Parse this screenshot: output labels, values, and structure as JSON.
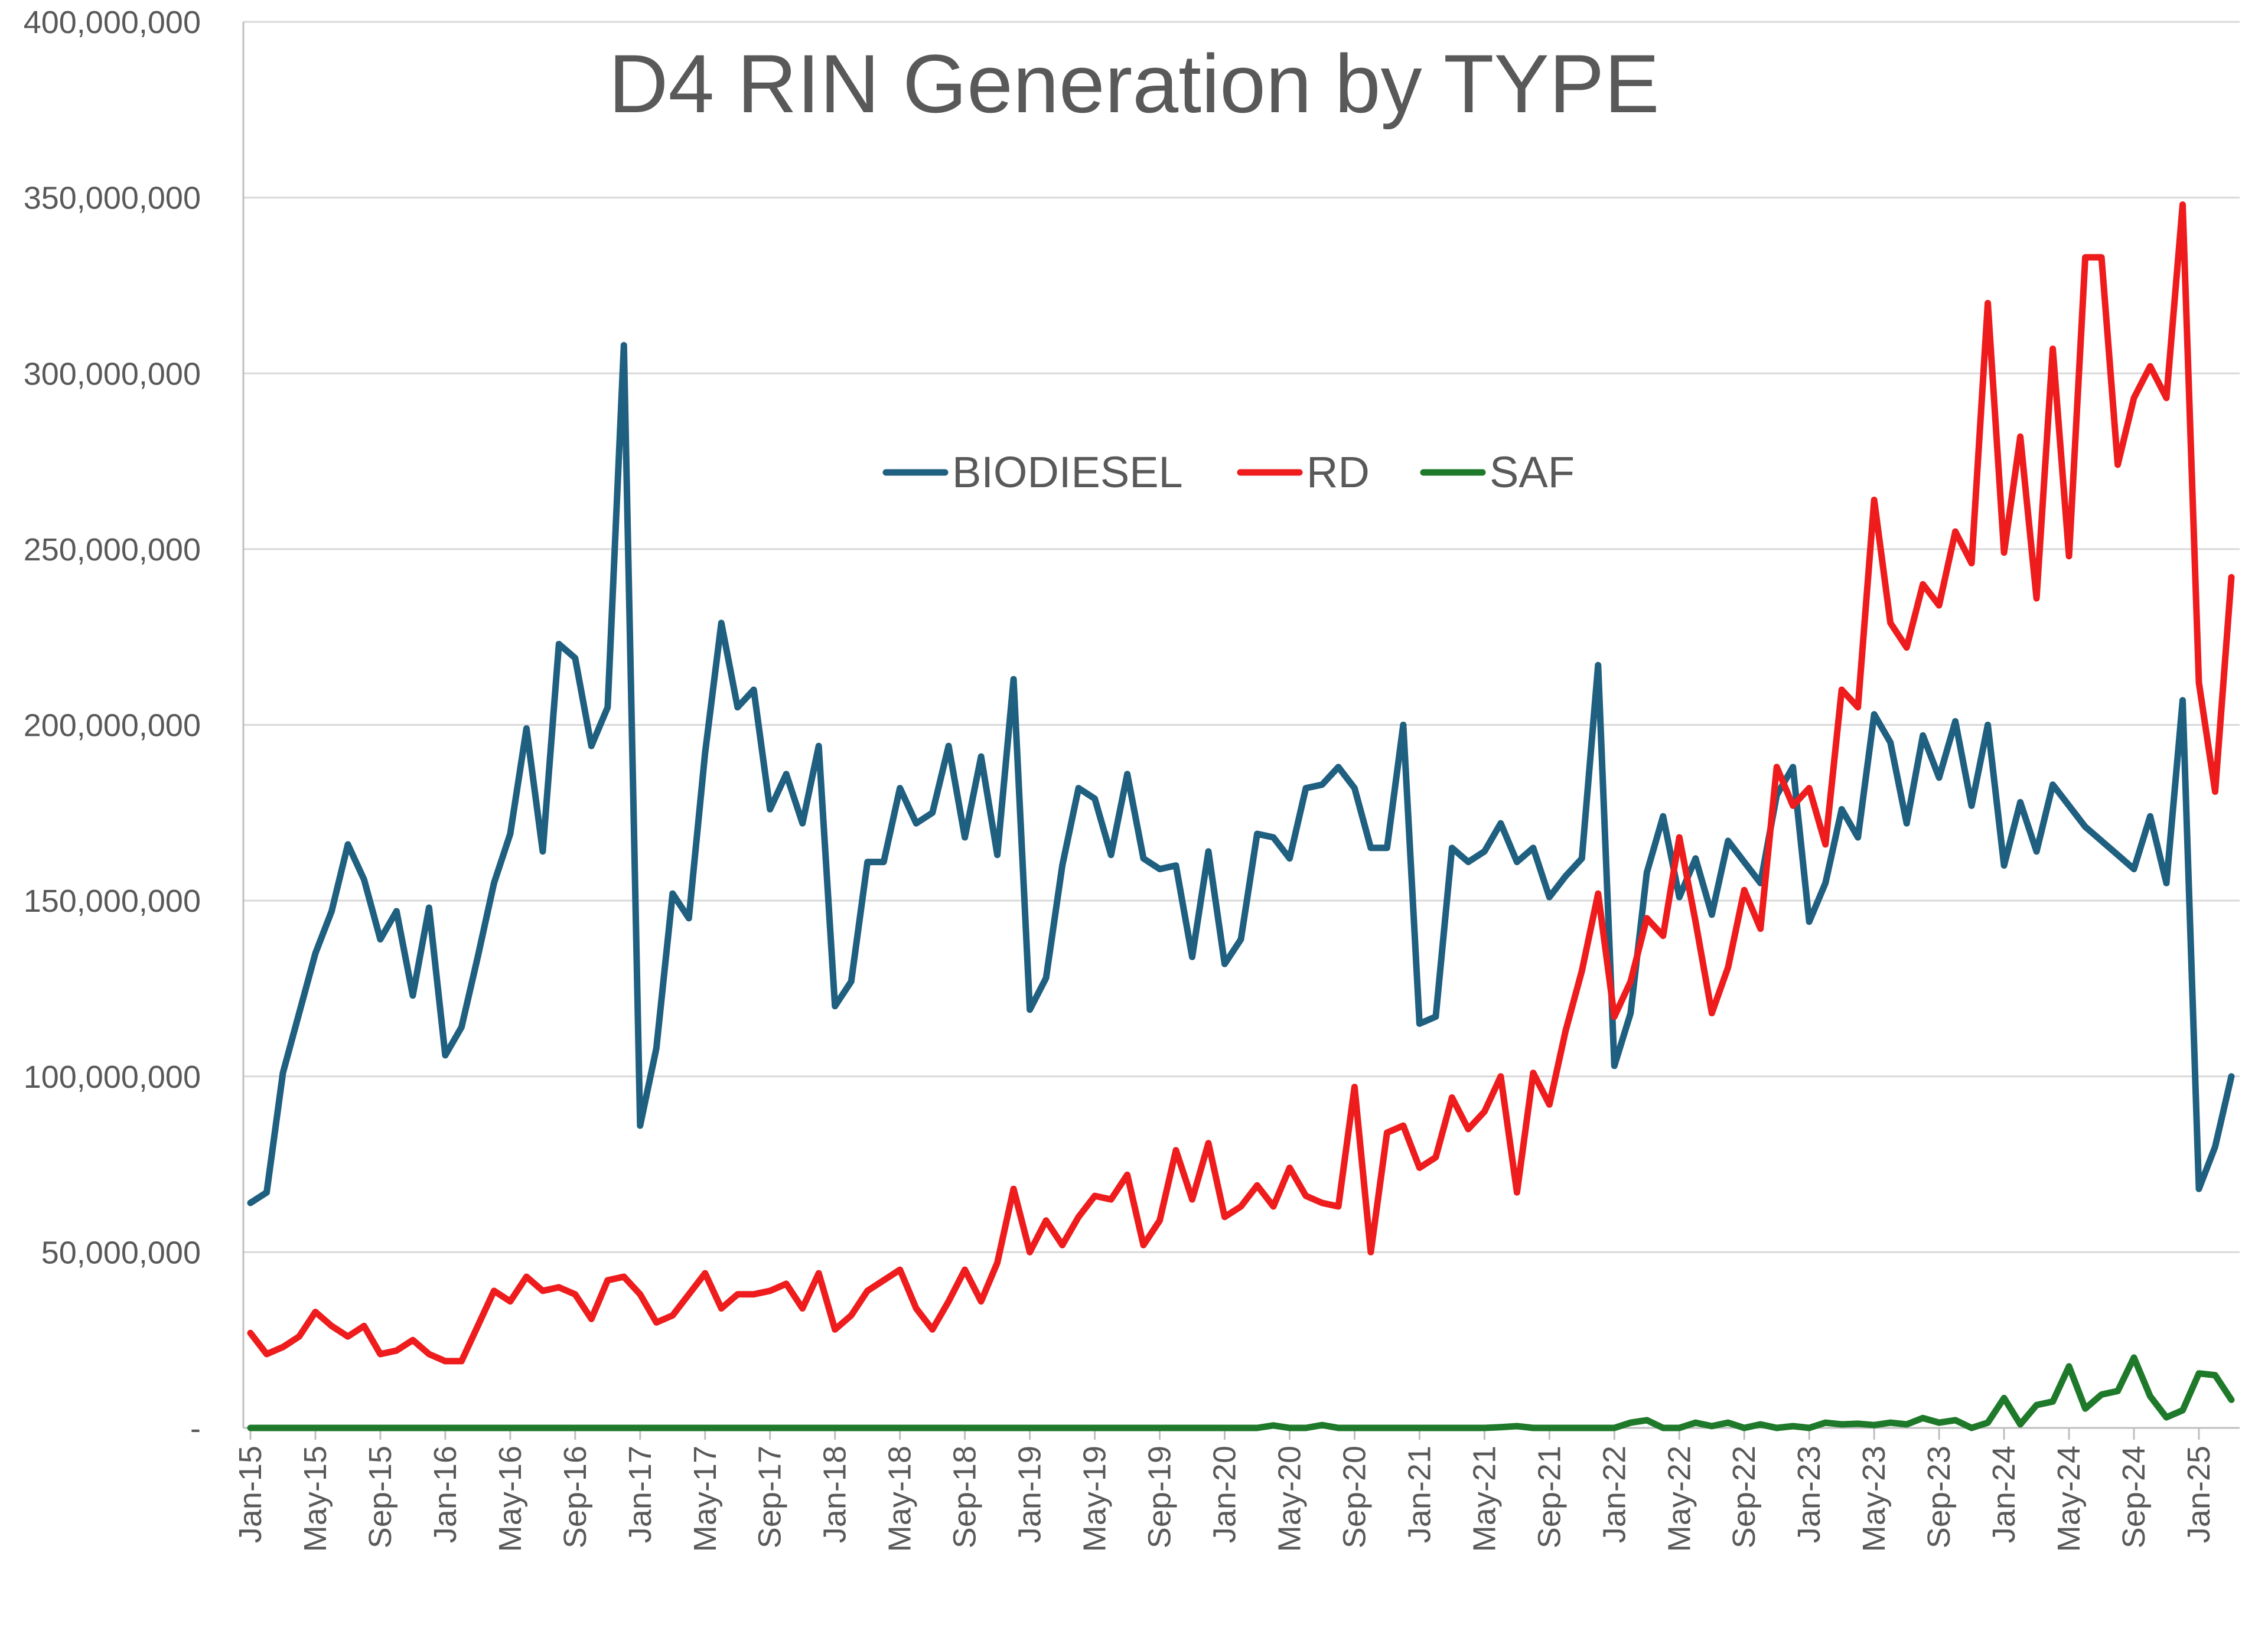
{
  "chart_data": {
    "type": "line",
    "title": "D4 RIN Generation by TYPE",
    "xlabel": "",
    "ylabel": "",
    "ylim": [
      0,
      400000000
    ],
    "y_ticks": [
      0,
      50000000,
      100000000,
      150000000,
      200000000,
      250000000,
      300000000,
      350000000,
      400000000
    ],
    "y_tick_labels": [
      "-",
      "50,000,000",
      "100,000,000",
      "150,000,000",
      "200,000,000",
      "250,000,000",
      "300,000,000",
      "350,000,000",
      "400,000,000"
    ],
    "x_tick_labels": [
      "Jan-15",
      "May-15",
      "Sep-15",
      "Jan-16",
      "May-16",
      "Sep-16",
      "Jan-17",
      "May-17",
      "Sep-17",
      "Jan-18",
      "May-18",
      "Sep-18",
      "Jan-19",
      "May-19",
      "Sep-19",
      "Jan-20",
      "May-20",
      "Sep-20",
      "Jan-21",
      "May-21",
      "Sep-21",
      "Jan-22",
      "May-22",
      "Sep-22",
      "Jan-23",
      "May-23",
      "Sep-23",
      "Jan-24",
      "May-24",
      "Sep-24",
      "Jan-25"
    ],
    "x_tick_every": 4,
    "grid": true,
    "legend_position": "center-top",
    "series": [
      {
        "name": "BIODIESEL",
        "color": "#1f5f7f",
        "values": [
          64000000,
          67000000,
          101000000,
          118000000,
          135000000,
          147000000,
          166000000,
          156000000,
          139000000,
          147000000,
          123000000,
          148000000,
          106000000,
          114000000,
          134000000,
          155000000,
          169000000,
          199000000,
          164000000,
          223000000,
          219000000,
          194000000,
          205000000,
          308000000,
          86000000,
          108000000,
          152000000,
          145000000,
          192000000,
          229000000,
          205000000,
          210000000,
          176000000,
          186000000,
          172000000,
          194000000,
          120000000,
          127000000,
          161000000,
          161000000,
          182000000,
          172000000,
          175000000,
          194000000,
          168000000,
          191000000,
          163000000,
          213000000,
          119000000,
          128000000,
          160000000,
          182000000,
          179000000,
          163000000,
          186000000,
          162000000,
          159000000,
          160000000,
          134000000,
          164000000,
          132000000,
          139000000,
          169000000,
          168000000,
          162000000,
          182000000,
          183000000,
          188000000,
          182000000,
          165000000,
          165000000,
          200000000,
          115000000,
          117000000,
          165000000,
          161000000,
          164000000,
          172000000,
          161000000,
          165000000,
          151000000,
          157000000,
          162000000,
          217000000,
          103000000,
          118000000,
          158000000,
          174000000,
          151000000,
          162000000,
          146000000,
          167000000,
          161000000,
          155000000,
          180000000,
          188000000,
          144000000,
          155000000,
          176000000,
          168000000,
          203000000,
          195000000,
          172000000,
          197000000,
          185000000,
          201000000,
          177000000,
          200000000,
          160000000,
          178000000,
          164000000,
          183000000,
          177000000,
          171000000,
          167000000,
          163000000,
          159000000,
          174000000,
          155000000,
          207000000,
          68000000,
          80000000,
          100000000
        ]
      },
      {
        "name": "RD",
        "color": "#ee1c1c",
        "values": [
          27000000,
          21000000,
          23000000,
          26000000,
          33000000,
          29000000,
          26000000,
          29000000,
          21000000,
          22000000,
          25000000,
          21000000,
          19000000,
          19000000,
          29000000,
          39000000,
          36000000,
          43000000,
          39000000,
          40000000,
          38000000,
          31000000,
          42000000,
          43000000,
          38000000,
          30000000,
          32000000,
          38000000,
          44000000,
          34000000,
          38000000,
          38000000,
          39000000,
          41000000,
          34000000,
          44000000,
          28000000,
          32000000,
          39000000,
          42000000,
          45000000,
          34000000,
          28000000,
          36000000,
          45000000,
          36000000,
          47000000,
          68000000,
          50000000,
          59000000,
          52000000,
          60000000,
          66000000,
          65000000,
          72000000,
          52000000,
          59000000,
          79000000,
          65000000,
          81000000,
          60000000,
          63000000,
          69000000,
          63000000,
          74000000,
          66000000,
          64000000,
          63000000,
          97000000,
          50000000,
          84000000,
          86000000,
          74000000,
          77000000,
          94000000,
          85000000,
          90000000,
          100000000,
          67000000,
          101000000,
          92000000,
          113000000,
          130000000,
          152000000,
          117000000,
          127000000,
          145000000,
          140000000,
          168000000,
          144000000,
          118000000,
          131000000,
          153000000,
          142000000,
          188000000,
          177000000,
          182000000,
          166000000,
          210000000,
          205000000,
          264000000,
          229000000,
          222000000,
          240000000,
          234000000,
          255000000,
          246000000,
          320000000,
          249000000,
          282000000,
          236000000,
          307000000,
          248000000,
          333000000,
          333000000,
          274000000,
          293000000,
          302000000,
          293000000,
          348000000,
          212000000,
          181000000,
          242000000
        ]
      },
      {
        "name": "SAF",
        "color": "#1e7a2a",
        "values": [
          0,
          0,
          0,
          0,
          0,
          0,
          0,
          0,
          0,
          0,
          0,
          0,
          0,
          0,
          0,
          0,
          0,
          0,
          0,
          0,
          0,
          0,
          0,
          0,
          0,
          0,
          0,
          0,
          0,
          0,
          0,
          0,
          0,
          0,
          0,
          0,
          0,
          0,
          0,
          0,
          0,
          0,
          0,
          0,
          0,
          0,
          0,
          0,
          0,
          0,
          0,
          0,
          0,
          0,
          0,
          0,
          0,
          0,
          0,
          0,
          0,
          0,
          0,
          700000,
          0,
          0,
          800000,
          0,
          0,
          0,
          0,
          0,
          0,
          0,
          0,
          0,
          0,
          200000,
          500000,
          0,
          0,
          0,
          0,
          0,
          0,
          1500000,
          2200000,
          0,
          0,
          1500000,
          500000,
          1500000,
          0,
          1000000,
          0,
          500000,
          0,
          1500000,
          1000000,
          1200000,
          800000,
          1500000,
          1000000,
          2800000,
          1500000,
          2200000,
          0,
          1500000,
          8500000,
          1000000,
          6500000,
          7500000,
          17500000,
          5500000,
          9500000,
          10500000,
          20000000,
          9000000,
          3000000,
          5000000,
          15500000,
          15000000,
          8000000
        ]
      }
    ]
  }
}
